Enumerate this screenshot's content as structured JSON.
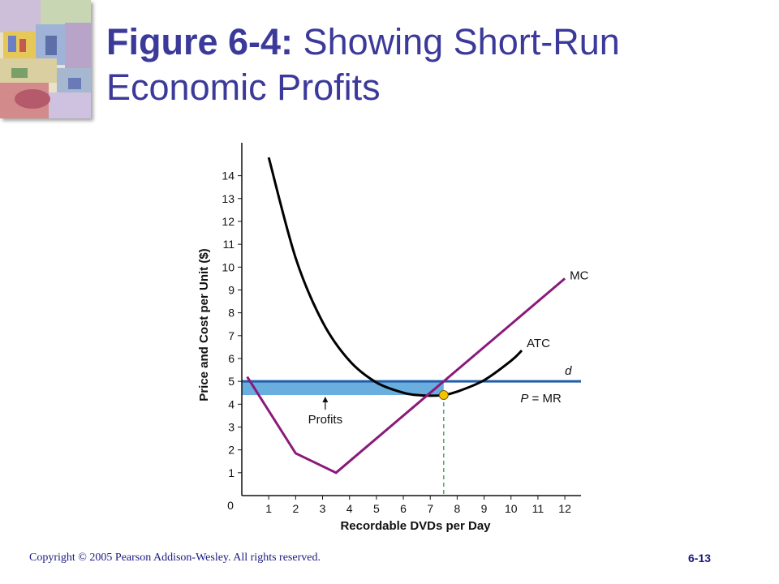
{
  "slide": {
    "title_bold": "Figure 6-4:",
    "title_rest": " Showing Short-Run Economic Profits",
    "footer_copyright": "Copyright © 2005 Pearson Addison-Wesley. All rights reserved.",
    "page_number": "6-13"
  },
  "colors": {
    "title": "#3b3a9a",
    "mc_curve": "#8a1a7a",
    "atc_curve": "#000000",
    "demand_line": "#1f5fa8",
    "profit_area": "#6aaee0",
    "equilibrium_point": "#f5c400",
    "dashed_line": "#2e9a5a"
  },
  "chart_data": {
    "type": "line",
    "title": "",
    "xlabel": "Recordable DVDs per Day",
    "ylabel": "Price and Cost per Unit ($)",
    "xlim": [
      0,
      12.6
    ],
    "ylim": [
      0,
      15.3
    ],
    "x_ticks": [
      1,
      2,
      3,
      4,
      5,
      6,
      7,
      8,
      9,
      10,
      11,
      12
    ],
    "y_ticks": [
      1,
      2,
      3,
      4,
      5,
      6,
      7,
      8,
      9,
      10,
      11,
      12,
      13,
      14
    ],
    "origin_label": "0",
    "series": [
      {
        "name": "MC",
        "points": [
          [
            0.2,
            5.2
          ],
          [
            2,
            1.85
          ],
          [
            3.5,
            1.0
          ],
          [
            7.5,
            5.0
          ],
          [
            12,
            9.5
          ]
        ]
      },
      {
        "name": "ATC",
        "points": [
          [
            1,
            14.8
          ],
          [
            2,
            10.4
          ],
          [
            3,
            7.6
          ],
          [
            4,
            5.9
          ],
          [
            5,
            4.95
          ],
          [
            6,
            4.5
          ],
          [
            6.5,
            4.4
          ],
          [
            7,
            4.37
          ],
          [
            7.5,
            4.4
          ],
          [
            8,
            4.55
          ],
          [
            9,
            5.05
          ],
          [
            10,
            5.9
          ],
          [
            10.4,
            6.35
          ]
        ]
      },
      {
        "name": "d",
        "label_below": "P = MR",
        "points": [
          [
            0,
            5
          ],
          [
            12.6,
            5
          ]
        ]
      }
    ],
    "profit_area": {
      "x0": 0,
      "x1": 7.5,
      "y_top": 5,
      "y_bottom": 4.4,
      "label": "Profits"
    },
    "equilibrium": {
      "x": 7.5,
      "y": 4.4
    }
  }
}
